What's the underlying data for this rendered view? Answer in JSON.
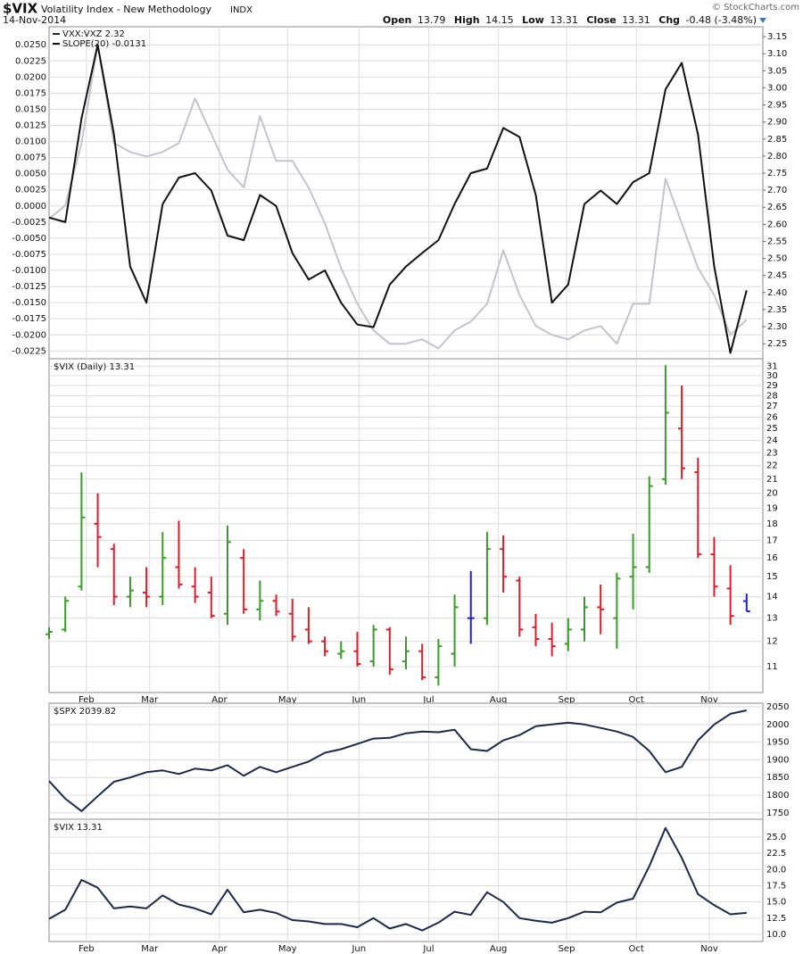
{
  "header": {
    "symbol": "$VIX",
    "name": "Volatility Index - New Methodology",
    "exchange": "INDX",
    "date": "14-Nov-2014",
    "copyright": "© StockCharts.com",
    "quote": [
      {
        "label": "Open",
        "value": 13.79
      },
      {
        "label": "High",
        "value": 14.15
      },
      {
        "label": "Low",
        "value": 13.31
      },
      {
        "label": "Close",
        "value": 13.31
      },
      {
        "label": "Chg",
        "value": "-0.48 (-3.48%)"
      }
    ]
  },
  "chart_data": [
    {
      "type": "line",
      "y_axis": "left",
      "grid": true,
      "x": [
        0,
        1,
        2,
        3,
        4,
        5,
        6,
        7,
        8,
        9,
        10,
        11,
        12,
        13,
        14,
        15,
        16,
        17,
        18,
        19,
        20,
        21,
        22,
        23,
        24,
        25,
        26,
        27,
        28,
        29,
        30,
        31,
        32,
        33,
        34,
        35,
        36,
        37,
        38,
        39,
        40,
        41,
        42,
        43
      ],
      "xlim": [
        0,
        44
      ],
      "xticks": [
        {
          "value": 2.3,
          "label": "Feb"
        },
        {
          "value": 6.2,
          "label": "Mar"
        },
        {
          "value": 10.5,
          "label": "Apr"
        },
        {
          "value": 14.7,
          "label": "May"
        },
        {
          "value": 19.1,
          "label": "Jun"
        },
        {
          "value": 23.4,
          "label": "Jul"
        },
        {
          "value": 27.7,
          "label": "Aug"
        },
        {
          "value": 31.9,
          "label": "Sep"
        },
        {
          "value": 36.2,
          "label": "Oct"
        },
        {
          "value": 40.7,
          "label": "Nov"
        }
      ],
      "ylim": [
        -0.0237,
        0.0278
      ],
      "yticks": [
        {
          "value": 0.025,
          "label": "0.0250"
        },
        0.0225,
        {
          "value": 0.02,
          "label": "0.0200"
        },
        0.0175,
        {
          "value": 0.015,
          "label": "0.0150"
        },
        0.0125,
        {
          "value": 0.01,
          "label": "0.0100"
        },
        0.0075,
        {
          "value": 0.005,
          "label": "0.0050"
        },
        0.0025,
        {
          "value": 0,
          "label": "0.0000"
        },
        -0.0025,
        {
          "value": -0.005,
          "label": "-0.0050"
        },
        -0.0075,
        {
          "value": -0.01,
          "label": "-0.0100"
        },
        -0.0125,
        {
          "value": -0.015,
          "label": "-0.0150"
        },
        -0.0175,
        {
          "value": -0.02,
          "label": "-0.0200"
        },
        -0.0225
      ],
      "y2lim": [
        2.206,
        3.179
      ],
      "y2ticks": [
        3.15,
        {
          "value": 3.1,
          "label": "3.10"
        },
        3.05,
        {
          "value": 3,
          "label": "3.00"
        },
        2.95,
        {
          "value": 2.9,
          "label": "2.90"
        },
        2.85,
        {
          "value": 2.8,
          "label": "2.80"
        },
        2.75,
        {
          "value": 2.7,
          "label": "2.70"
        },
        2.65,
        {
          "value": 2.6,
          "label": "2.60"
        },
        2.55,
        {
          "value": 2.5,
          "label": "2.50"
        },
        2.45,
        {
          "value": 2.4,
          "label": "2.40"
        },
        2.35,
        {
          "value": 2.3,
          "label": "2.30"
        },
        2.25
      ],
      "series": [
        {
          "name": "VXX:VXZ 2.32",
          "color": "#c4c4cc",
          "axis": "y2",
          "values": [
            2.616,
            2.655,
            2.838,
            3.126,
            2.838,
            2.812,
            2.799,
            2.812,
            2.838,
            2.969,
            2.865,
            2.76,
            2.708,
            2.917,
            2.786,
            2.786,
            2.708,
            2.603,
            2.472,
            2.367,
            2.289,
            2.25,
            2.25,
            2.263,
            2.236,
            2.289,
            2.315,
            2.367,
            2.524,
            2.393,
            2.302,
            2.276,
            2.263,
            2.289,
            2.302,
            2.25,
            2.367,
            2.367,
            2.734,
            2.603,
            2.472,
            2.393,
            2.276,
            2.32
          ]
        },
        {
          "name": "SLOPE(20) -0.0131",
          "color": "#111111",
          "values": [
            -0.0018,
            -0.0025,
            0.0136,
            0.025,
            0.0111,
            -0.0094,
            -0.015,
            0.0003,
            0.0044,
            0.0051,
            0.0024,
            -0.0046,
            -0.0053,
            0.0017,
            0,
            -0.0073,
            -0.0114,
            -0.01,
            -0.015,
            -0.0184,
            -0.0188,
            -0.0122,
            -0.0094,
            -0.0073,
            -0.0053,
            0.0003,
            0.0051,
            0.0058,
            0.0121,
            0.0107,
            0.0017,
            -0.015,
            -0.0122,
            0.0003,
            0.0024,
            0.0003,
            0.0037,
            0.0051,
            0.0181,
            0.0222,
            0.0111,
            -0.0094,
            -0.0228,
            -0.0131
          ]
        }
      ]
    },
    {
      "type": "ohlc",
      "title": "$VIX (Daily) 13.31",
      "y_axis": "right",
      "log": true,
      "grid": true,
      "x_tick_labels": true,
      "up_color": "#3c9a2a",
      "down_color": "#d6202e",
      "neutral_color": "#2222c0",
      "x": [
        0,
        1,
        2,
        3,
        4,
        5,
        6,
        7,
        8,
        9,
        10,
        11,
        12,
        13,
        14,
        15,
        16,
        17,
        18,
        19,
        20,
        21,
        22,
        23,
        24,
        25,
        26,
        27,
        28,
        29,
        30,
        31,
        32,
        33,
        34,
        35,
        36,
        37,
        38,
        39,
        40,
        41,
        42,
        43
      ],
      "xlim": [
        0,
        44
      ],
      "xticks": [
        {
          "value": 2.3,
          "label": "Feb"
        },
        {
          "value": 6.2,
          "label": "Mar"
        },
        {
          "value": 10.5,
          "label": "Apr"
        },
        {
          "value": 14.7,
          "label": "May"
        },
        {
          "value": 19.1,
          "label": "Jun"
        },
        {
          "value": 23.4,
          "label": "Jul"
        },
        {
          "value": 27.7,
          "label": "Aug"
        },
        {
          "value": 31.9,
          "label": "Sep"
        },
        {
          "value": 36.2,
          "label": "Oct"
        },
        {
          "value": 40.7,
          "label": "Nov"
        }
      ],
      "ylim": [
        10.06,
        31.8
      ],
      "yticks": [
        11,
        12,
        13,
        14,
        15,
        16,
        17,
        18,
        19,
        20,
        21,
        22,
        23,
        24,
        25,
        26,
        27,
        28,
        29,
        30,
        31
      ],
      "open": [
        12.3,
        12.5,
        14.5,
        18.0,
        16.5,
        14.0,
        14.2,
        14.0,
        15.5,
        14.5,
        14.2,
        13.2,
        16.0,
        13.4,
        13.8,
        13.2,
        12.5,
        12.0,
        11.5,
        11.6,
        11.2,
        12.5,
        11.2,
        11.6,
        10.6,
        11.5,
        13.0,
        13.0,
        16.5,
        14.8,
        12.6,
        12.1,
        11.9,
        12.5,
        13.5,
        13.0,
        15.0,
        15.5,
        21.0,
        25.0,
        21.5,
        16.2,
        14.4,
        13.79
      ],
      "high": [
        12.6,
        14.0,
        21.5,
        20.0,
        16.8,
        15.0,
        15.5,
        17.5,
        18.2,
        15.5,
        15.0,
        17.9,
        16.5,
        14.8,
        14.1,
        13.9,
        13.5,
        12.2,
        12.0,
        12.4,
        12.7,
        12.6,
        12.2,
        11.9,
        12.1,
        14.1,
        15.3,
        17.5,
        17.3,
        15.0,
        13.2,
        12.8,
        13.0,
        14.0,
        14.6,
        15.2,
        17.4,
        21.2,
        31.1,
        29.0,
        22.6,
        17.2,
        15.6,
        14.15
      ],
      "low": [
        12.1,
        12.4,
        14.3,
        15.5,
        13.6,
        13.5,
        13.5,
        13.6,
        14.4,
        13.7,
        13.0,
        12.7,
        13.2,
        12.9,
        13.1,
        12.0,
        11.9,
        11.4,
        11.3,
        11.0,
        11.0,
        10.7,
        10.9,
        10.5,
        10.3,
        11.0,
        11.9,
        12.7,
        14.2,
        12.2,
        11.8,
        11.4,
        11.6,
        12.0,
        12.3,
        11.7,
        13.4,
        15.2,
        20.6,
        21.0,
        16.0,
        14.0,
        12.7,
        13.31
      ],
      "close": [
        12.4,
        13.8,
        18.4,
        17.2,
        14.0,
        14.3,
        14.0,
        16.0,
        14.6,
        14.0,
        13.1,
        16.9,
        13.4,
        13.8,
        13.3,
        12.2,
        12.0,
        11.6,
        11.6,
        11.1,
        12.5,
        10.9,
        11.6,
        10.6,
        11.8,
        13.5,
        13.0,
        16.5,
        15.0,
        12.5,
        12.1,
        11.8,
        12.5,
        13.5,
        13.4,
        14.9,
        15.5,
        20.5,
        26.4,
        21.8,
        16.2,
        14.5,
        13.1,
        13.31
      ]
    },
    {
      "type": "line",
      "title": "$SPX 2039.82",
      "y_axis": "right",
      "grid": true,
      "x": [
        0,
        1,
        2,
        3,
        4,
        5,
        6,
        7,
        8,
        9,
        10,
        11,
        12,
        13,
        14,
        15,
        16,
        17,
        18,
        19,
        20,
        21,
        22,
        23,
        24,
        25,
        26,
        27,
        28,
        29,
        30,
        31,
        32,
        33,
        34,
        35,
        36,
        37,
        38,
        39,
        40,
        41,
        42,
        43
      ],
      "xlim": [
        0,
        44
      ],
      "xticks": [
        {
          "value": 2.3,
          "label": "Feb"
        },
        {
          "value": 6.2,
          "label": "Mar"
        },
        {
          "value": 10.5,
          "label": "Apr"
        },
        {
          "value": 14.7,
          "label": "May"
        },
        {
          "value": 19.1,
          "label": "Jun"
        },
        {
          "value": 23.4,
          "label": "Jul"
        },
        {
          "value": 27.7,
          "label": "Aug"
        },
        {
          "value": 31.9,
          "label": "Sep"
        },
        {
          "value": 36.2,
          "label": "Oct"
        },
        {
          "value": 40.7,
          "label": "Nov"
        }
      ],
      "ylim": [
        1732,
        2060
      ],
      "yticks": [
        2050,
        2000,
        1950,
        1900,
        1850,
        1800,
        1750
      ],
      "series": [
        {
          "color": "#1c2a48",
          "values": [
            1840,
            1790,
            1755,
            1797,
            1838,
            1850,
            1865,
            1870,
            1860,
            1875,
            1870,
            1885,
            1855,
            1880,
            1865,
            1880,
            1895,
            1920,
            1930,
            1945,
            1960,
            1962,
            1975,
            1980,
            1978,
            1985,
            1930,
            1925,
            1955,
            1970,
            1995,
            2000,
            2005,
            2000,
            1990,
            1980,
            1965,
            1925,
            1865,
            1880,
            1955,
            2000,
            2030,
            2039.82
          ]
        }
      ]
    },
    {
      "type": "line",
      "title": "$VIX 13.31",
      "y_axis": "right",
      "grid": true,
      "x_tick_labels": true,
      "x": [
        0,
        1,
        2,
        3,
        4,
        5,
        6,
        7,
        8,
        9,
        10,
        11,
        12,
        13,
        14,
        15,
        16,
        17,
        18,
        19,
        20,
        21,
        22,
        23,
        24,
        25,
        26,
        27,
        28,
        29,
        30,
        31,
        32,
        33,
        34,
        35,
        36,
        37,
        38,
        39,
        40,
        41,
        42,
        43
      ],
      "xlim": [
        0,
        44
      ],
      "xticks": [
        {
          "value": 2.3,
          "label": "Feb"
        },
        {
          "value": 6.2,
          "label": "Mar"
        },
        {
          "value": 10.5,
          "label": "Apr"
        },
        {
          "value": 14.7,
          "label": "May"
        },
        {
          "value": 19.1,
          "label": "Jun"
        },
        {
          "value": 23.4,
          "label": "Jul"
        },
        {
          "value": 27.7,
          "label": "Aug"
        },
        {
          "value": 31.9,
          "label": "Sep"
        },
        {
          "value": 36.2,
          "label": "Oct"
        },
        {
          "value": 40.7,
          "label": "Nov"
        }
      ],
      "ylim": [
        8.9,
        27.75
      ],
      "yticks": [
        {
          "value": 25,
          "label": "25.0"
        },
        22.5,
        {
          "value": 20,
          "label": "20.0"
        },
        17.5,
        {
          "value": 15,
          "label": "15.0"
        },
        12.5,
        {
          "value": 10,
          "label": "10.0"
        }
      ],
      "series": [
        {
          "color": "#1c2a48",
          "values": [
            12.4,
            13.8,
            18.4,
            17.2,
            14.0,
            14.3,
            14.0,
            16.0,
            14.6,
            14.0,
            13.1,
            16.9,
            13.4,
            13.8,
            13.3,
            12.2,
            12.0,
            11.6,
            11.6,
            11.1,
            12.5,
            10.9,
            11.6,
            10.6,
            11.8,
            13.5,
            13.0,
            16.5,
            15.0,
            12.5,
            12.1,
            11.8,
            12.5,
            13.5,
            13.4,
            14.9,
            15.5,
            20.5,
            26.4,
            21.8,
            16.2,
            14.5,
            13.1,
            13.31
          ]
        }
      ]
    }
  ]
}
